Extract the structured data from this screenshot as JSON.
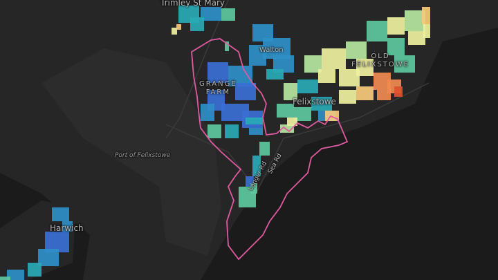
{
  "map": {
    "labels": {
      "trimley": "Trimley St Mary",
      "walton": "Walton",
      "grange_farm_1": "GRANGE",
      "grange_farm_2": "FARM",
      "old_felixstowe_1": "OLD",
      "old_felixstowe_2": "FELIXSTOWE",
      "felixstowe": "Felixstowe",
      "port": "Port of Felixstowe",
      "langer_rd": "Langer Rd",
      "sea_rd": "Sea Rd",
      "harwich": "Harwich"
    },
    "colors": {
      "boundary": "#e05aa0",
      "land": "#262626",
      "water": "#1b1b1b",
      "scale": [
        "#3b6fd4",
        "#2f8fc8",
        "#29a9b5",
        "#5cc8a0",
        "#b5e6a0",
        "#eef0a0",
        "#f7c97a",
        "#f08a50",
        "#e0502f"
      ]
    }
  }
}
